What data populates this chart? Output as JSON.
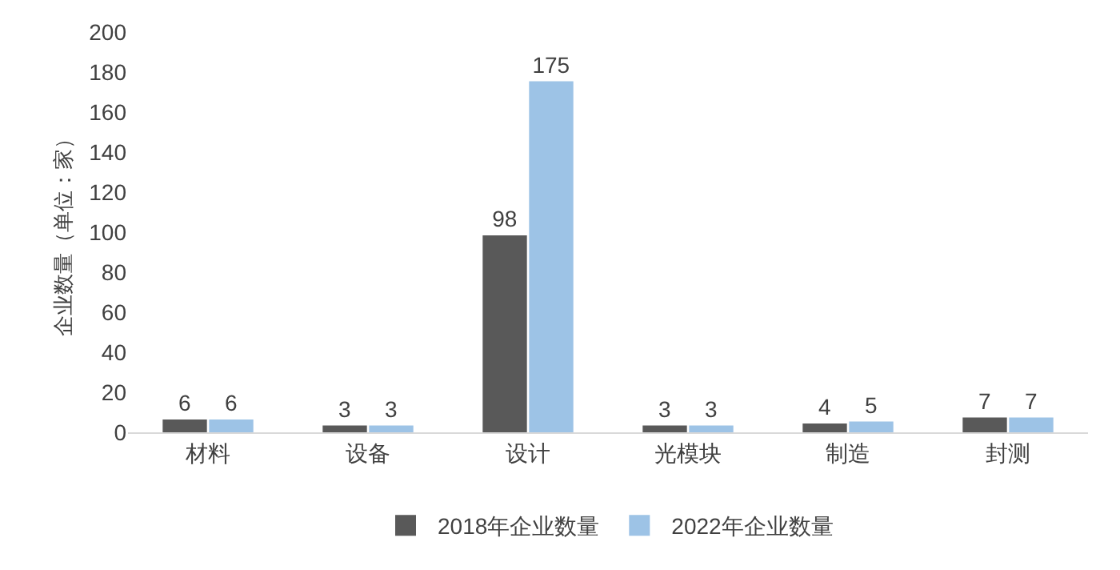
{
  "chart_data": {
    "type": "bar",
    "ylabel": "企业数量（单位：家）",
    "categories": [
      "材料",
      "设备",
      "设计",
      "光模块",
      "制造",
      "封测"
    ],
    "series": [
      {
        "name": "2018年企业数量",
        "color": "#595959",
        "values": [
          6,
          3,
          98,
          3,
          4,
          7
        ]
      },
      {
        "name": "2022年企业数量",
        "color": "#9dc3e6",
        "values": [
          6,
          3,
          175,
          3,
          5,
          7
        ]
      }
    ],
    "ylim": [
      0,
      200
    ],
    "yticks": [
      0,
      20,
      40,
      60,
      80,
      100,
      120,
      140,
      160,
      180,
      200
    ],
    "grid": false,
    "legend": "bottom",
    "data_labels": true
  }
}
